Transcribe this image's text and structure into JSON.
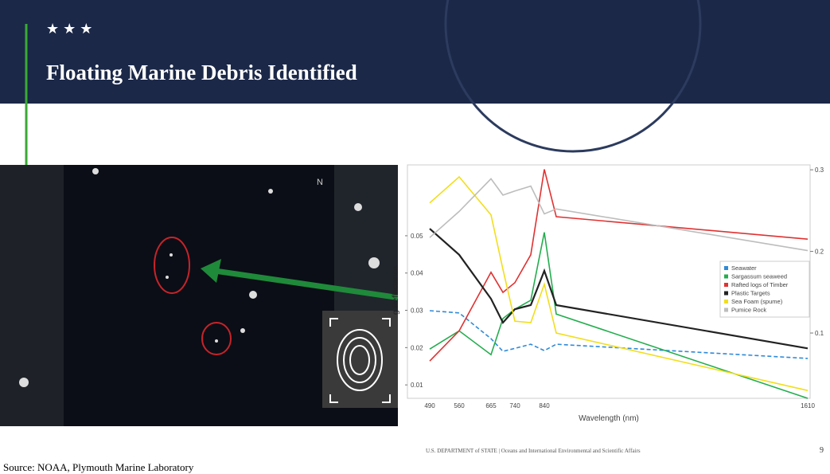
{
  "slide": {
    "stars": "★ ★ ★",
    "title": "Floating Marine Debris Identified",
    "north": "N",
    "footer": "U.S. DEPARTMENT of STATE | Oceans and International Environmental and Scientific Affairs",
    "page": 9,
    "source": "Source: NOAA, Plymouth Marine Laboratory"
  },
  "chart_data": {
    "type": "line",
    "x_label": "Wavelength (nm)",
    "y_label": "g Reflectance",
    "categories": [
      "490",
      "560",
      "665",
      null,
      "740",
      null,
      "840",
      null,
      "1610"
    ],
    "ylim": [
      0.0064,
      0.069
    ],
    "yticks": [
      0.01,
      0.02,
      0.03,
      0.04,
      0.05
    ],
    "y2lim": [
      0.02,
      0.306
    ],
    "y2ticks": [
      0.1,
      0.2,
      0.3
    ],
    "legend": "right",
    "series": [
      {
        "name": "Seawater",
        "color": "#2f8ad8",
        "dashed": true,
        "values": [
          0.0299,
          0.0293,
          0.0224,
          0.019,
          0.0198,
          0.0209,
          0.0192,
          0.0209,
          0.0171
        ]
      },
      {
        "name": "Sargassum seaweed",
        "color": "#23ad4e",
        "values": [
          0.0196,
          0.0245,
          0.0181,
          0.0278,
          0.0303,
          0.0327,
          0.0509,
          0.029,
          0.0064
        ]
      },
      {
        "name": "Rafted logs of Timber",
        "color": "#e03232",
        "values": [
          0.0164,
          0.0245,
          0.0402,
          0.0348,
          0.0374,
          0.0449,
          0.0678,
          0.0551,
          0.0491
        ]
      },
      {
        "name": "Plastic Targets",
        "color": "#222222",
        "values": [
          0.0519,
          0.0449,
          0.0331,
          0.0267,
          0.0303,
          0.0314,
          0.0406,
          0.0314,
          0.0198
        ]
      },
      {
        "name": "Sea Foam (spume)",
        "color": "#f2de1c",
        "values": [
          0.0588,
          0.0658,
          0.0556,
          0.041,
          0.0271,
          0.0267,
          0.037,
          0.0239,
          0.0085
        ]
      },
      {
        "name": "Pumice Rock",
        "color": "#bdbdbd",
        "axis": "y2",
        "values": [
          0.217,
          0.249,
          0.289,
          0.269,
          0.274,
          0.28,
          0.246,
          0.252,
          0.201
        ]
      }
    ]
  }
}
